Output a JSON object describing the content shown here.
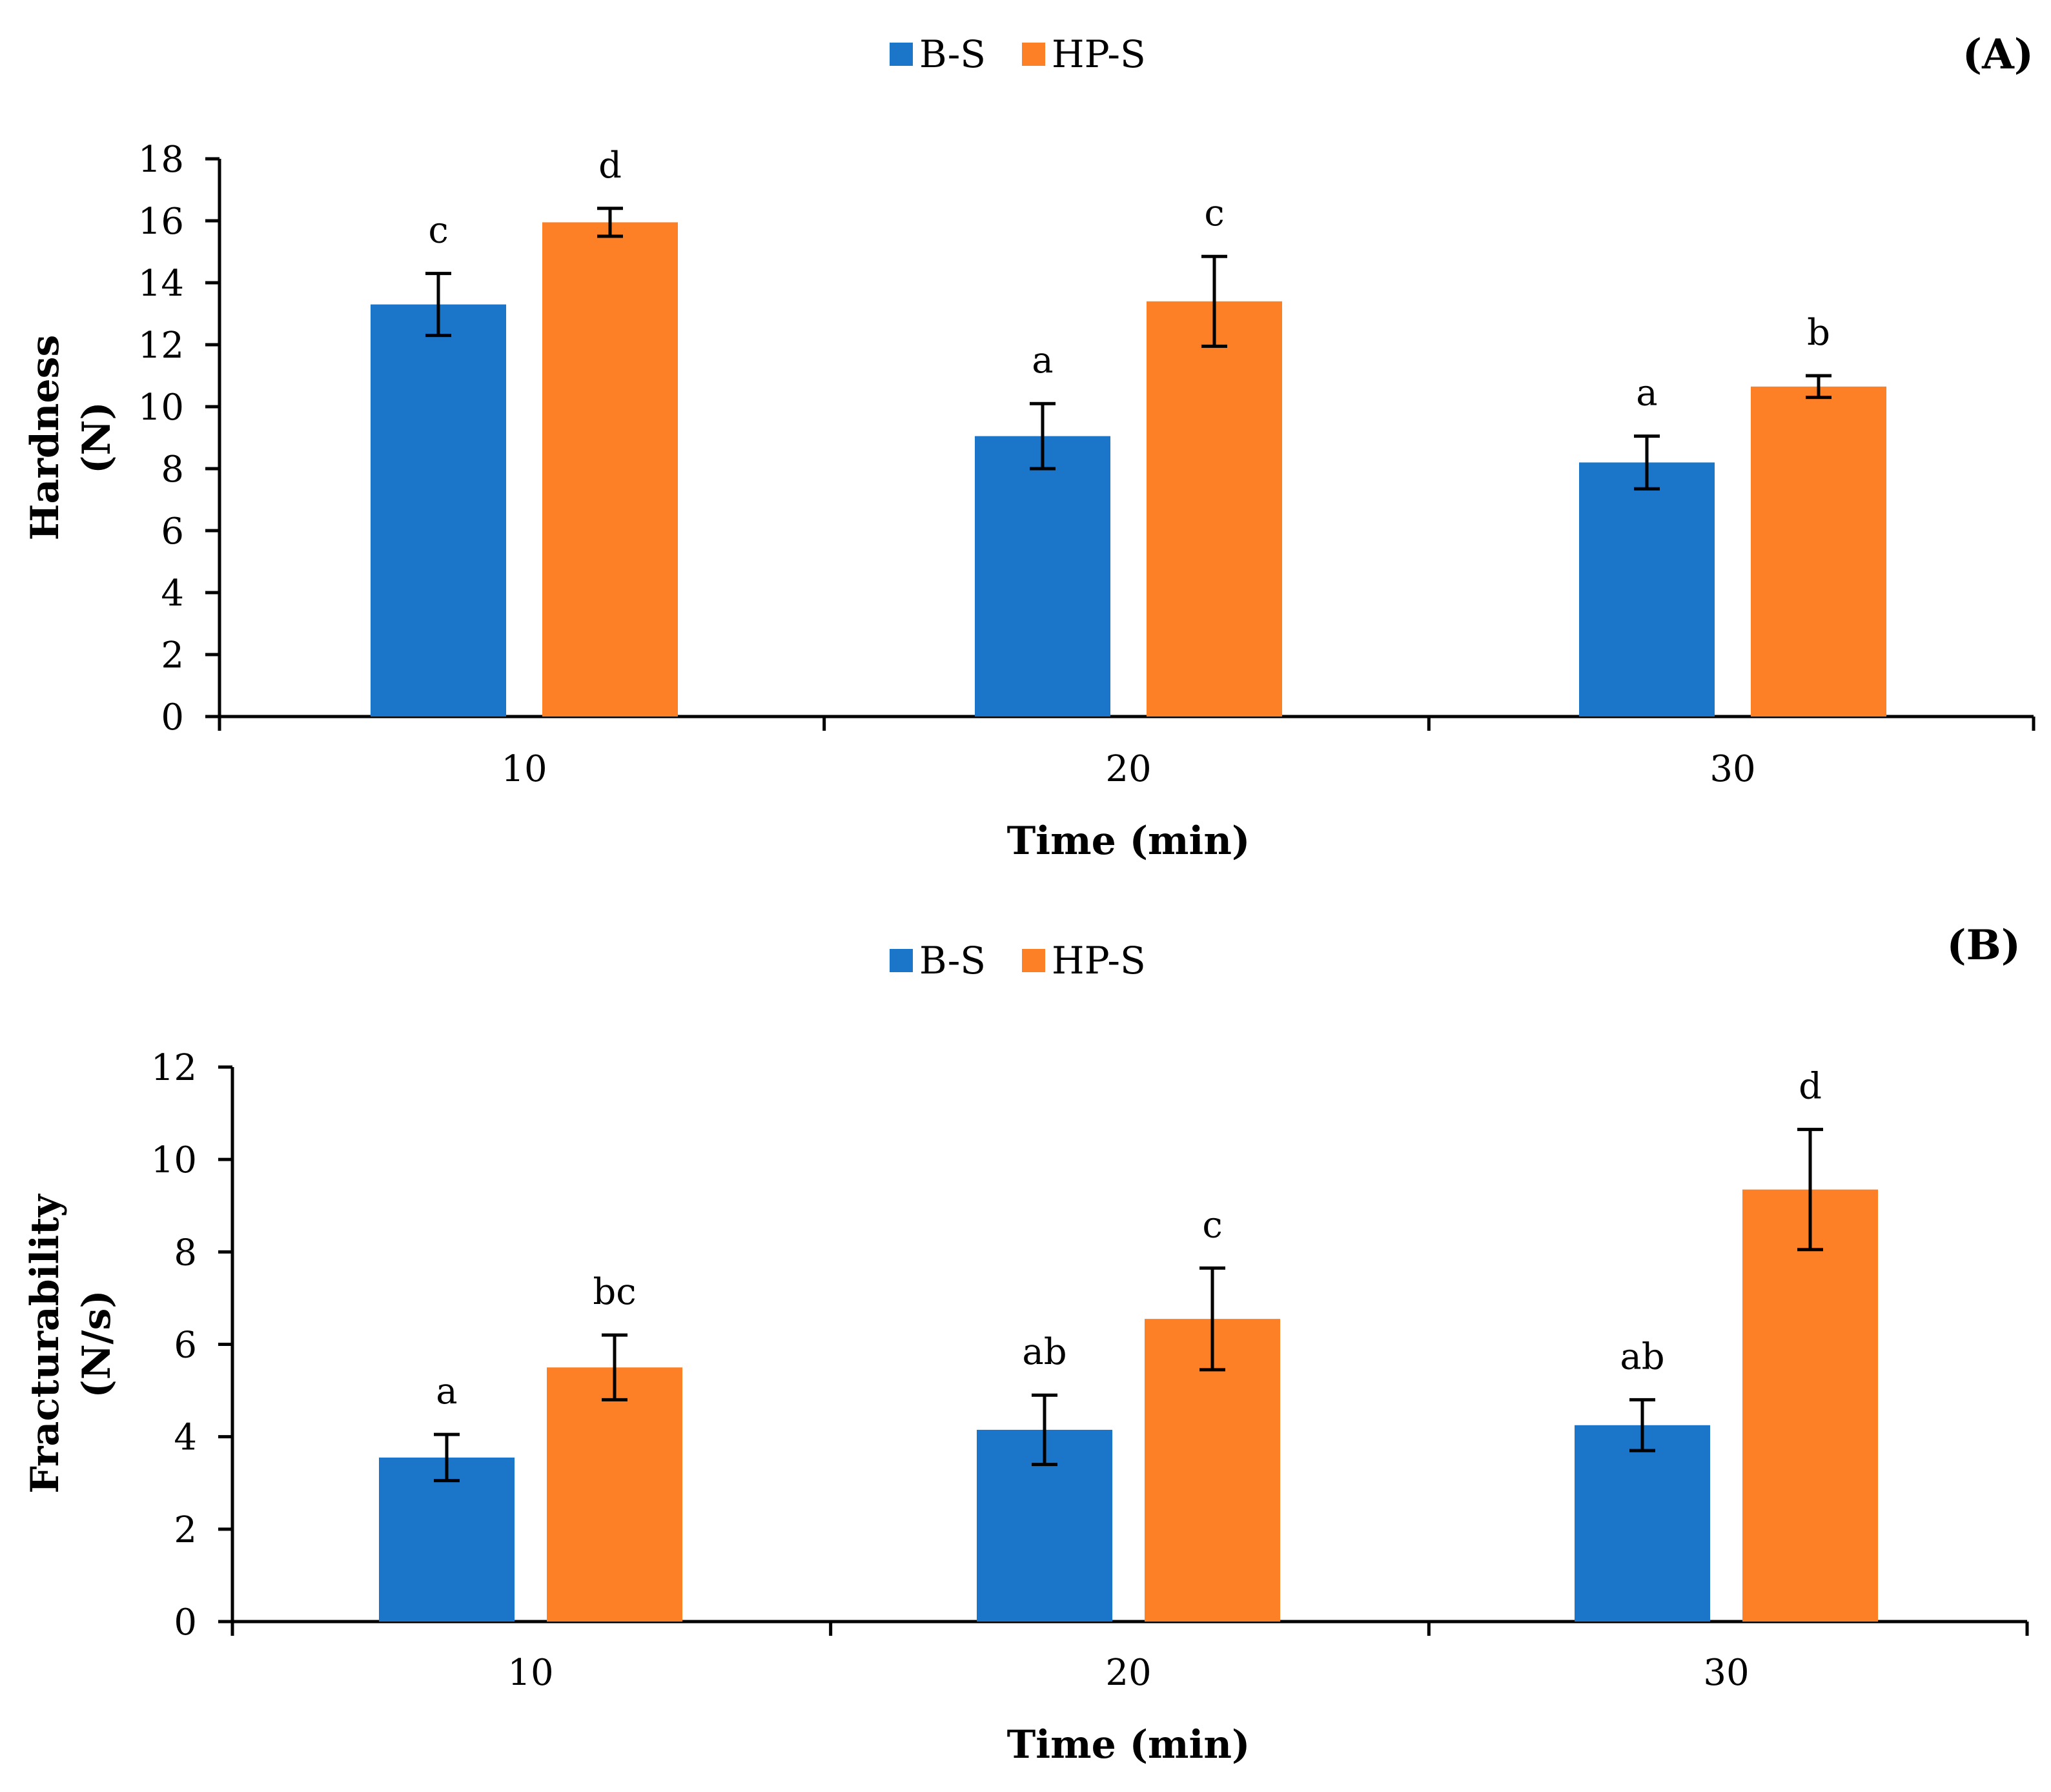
{
  "chart_data": [
    {
      "type": "bar",
      "panel_label": "(A)",
      "categories": [
        "10",
        "20",
        "30"
      ],
      "series": [
        {
          "name": "B-S",
          "color": "#1b75c9",
          "values": [
            13.3,
            9.05,
            8.2
          ],
          "errors": [
            1.0,
            1.05,
            0.85
          ],
          "letters": [
            "c",
            "a",
            "a"
          ]
        },
        {
          "name": "HP-S",
          "color": "#fd7f26",
          "values": [
            15.95,
            13.4,
            10.65
          ],
          "errors": [
            0.45,
            1.45,
            0.35
          ],
          "letters": [
            "d",
            "c",
            "b"
          ]
        }
      ],
      "xlabel": "Time (min)",
      "ylabel_line1": "Hardness",
      "ylabel_line2": "(N)",
      "ylim": [
        0,
        18
      ],
      "yticks": [
        "0",
        "2",
        "4",
        "6",
        "8",
        "10",
        "12",
        "14",
        "16",
        "18"
      ],
      "legend_position": "top-center",
      "grid": false
    },
    {
      "type": "bar",
      "panel_label": "(B)",
      "categories": [
        "10",
        "20",
        "30"
      ],
      "series": [
        {
          "name": "B-S",
          "color": "#1b75c9",
          "values": [
            3.55,
            4.15,
            4.25
          ],
          "errors": [
            0.5,
            0.75,
            0.55
          ],
          "letters": [
            "a",
            "ab",
            "ab"
          ]
        },
        {
          "name": "HP-S",
          "color": "#fd7f26",
          "values": [
            5.5,
            6.55,
            9.35
          ],
          "errors": [
            0.7,
            1.1,
            1.3
          ],
          "letters": [
            "bc",
            "c",
            "d"
          ]
        }
      ],
      "xlabel": "Time (min)",
      "ylabel_line1": "Fracturability",
      "ylabel_line2": "(N/s)",
      "ylim": [
        0,
        12
      ],
      "yticks": [
        "0",
        "2",
        "4",
        "6",
        "8",
        "10",
        "12"
      ],
      "legend_position": "top-center",
      "grid": false
    }
  ]
}
